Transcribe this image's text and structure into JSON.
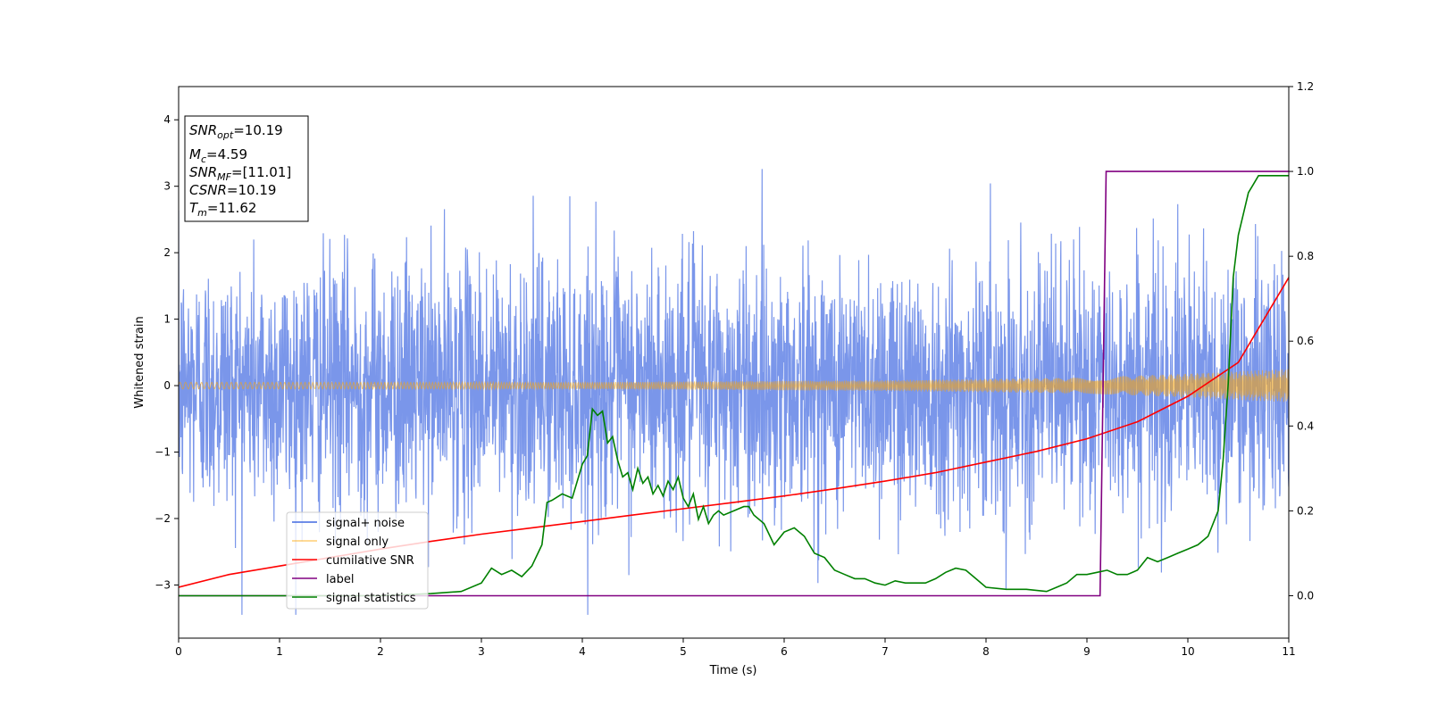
{
  "chart_data": {
    "type": "line",
    "xlabel": "Time (s)",
    "ylabel": "Whitened strain",
    "xlim": [
      0,
      11
    ],
    "ylim_left": [
      -3.8,
      4.5
    ],
    "ylim_right": [
      -0.1,
      1.2
    ],
    "x_ticks": [
      "0",
      "1",
      "2",
      "3",
      "4",
      "5",
      "6",
      "7",
      "8",
      "9",
      "10",
      "11"
    ],
    "y_ticks_left": [
      "−3",
      "−2",
      "−1",
      "0",
      "1",
      "2",
      "3",
      "4"
    ],
    "y_ticks_right": [
      "0.0",
      "0.2",
      "0.4",
      "0.6",
      "0.8",
      "1.0",
      "1.2"
    ],
    "grid": false,
    "legend_position": "lower-left",
    "annotation_box": {
      "lines": [
        {
          "sym": "SNR",
          "sub": "opt",
          "text": "=10.19"
        },
        {
          "sym": "M",
          "sub": "c",
          "text": "=4.59"
        },
        {
          "sym": "SNR",
          "sub": "MF",
          "text": "=[11.01]"
        },
        {
          "sym": "CSNR",
          "sub": "",
          "text": "=10.19"
        },
        {
          "sym": "T",
          "sub": "m",
          "text": "=11.62"
        }
      ]
    },
    "series": [
      {
        "name": "signal+ noise",
        "axis": "left",
        "color": "#4169e1",
        "style": "noise",
        "approx_envelope": {
          "typical_low": -1.6,
          "typical_high": 1.6,
          "max": 4.18,
          "min": -3.45
        }
      },
      {
        "name": "signal only",
        "axis": "left",
        "color": "#ffa500",
        "style": "chirp",
        "amplitude_points": [
          [
            0,
            0.05
          ],
          [
            4,
            0.05
          ],
          [
            7,
            0.08
          ],
          [
            9,
            0.12
          ],
          [
            10,
            0.18
          ],
          [
            11,
            0.25
          ]
        ]
      },
      {
        "name": "cumilative SNR",
        "axis": "right",
        "color": "#ff0000",
        "x": [
          0,
          0.5,
          1,
          1.5,
          2,
          2.5,
          3,
          3.5,
          4,
          4.5,
          5,
          5.5,
          6,
          6.5,
          7,
          7.5,
          8,
          8.5,
          9,
          9.5,
          10,
          10.5,
          11
        ],
        "y": [
          0.02,
          0.05,
          0.07,
          0.09,
          0.11,
          0.128,
          0.145,
          0.16,
          0.175,
          0.19,
          0.205,
          0.22,
          0.235,
          0.252,
          0.27,
          0.29,
          0.315,
          0.34,
          0.37,
          0.41,
          0.47,
          0.55,
          0.75
        ]
      },
      {
        "name": "label",
        "axis": "right",
        "color": "#800080",
        "x": [
          0,
          9.13,
          9.19,
          11
        ],
        "y": [
          0,
          0,
          1,
          1
        ]
      },
      {
        "name": "signal statistics",
        "axis": "right",
        "color": "#008000",
        "x": [
          0,
          0.5,
          1,
          1.5,
          2,
          2.5,
          2.8,
          3,
          3.1,
          3.2,
          3.3,
          3.4,
          3.5,
          3.6,
          3.65,
          3.7,
          3.8,
          3.9,
          4.0,
          4.05,
          4.1,
          4.15,
          4.2,
          4.25,
          4.3,
          4.35,
          4.4,
          4.45,
          4.5,
          4.55,
          4.6,
          4.65,
          4.7,
          4.75,
          4.8,
          4.85,
          4.9,
          4.95,
          5.0,
          5.05,
          5.1,
          5.15,
          5.2,
          5.25,
          5.3,
          5.35,
          5.4,
          5.5,
          5.6,
          5.65,
          5.7,
          5.8,
          5.9,
          6.0,
          6.1,
          6.2,
          6.3,
          6.4,
          6.5,
          6.6,
          6.7,
          6.8,
          6.9,
          7.0,
          7.1,
          7.2,
          7.3,
          7.4,
          7.5,
          7.6,
          7.7,
          7.8,
          7.9,
          8.0,
          8.2,
          8.4,
          8.6,
          8.7,
          8.8,
          8.9,
          9.0,
          9.1,
          9.2,
          9.3,
          9.4,
          9.5,
          9.6,
          9.7,
          9.8,
          9.9,
          10.0,
          10.1,
          10.2,
          10.3,
          10.35,
          10.4,
          10.45,
          10.5,
          10.55,
          10.6,
          10.65,
          10.7,
          10.8,
          10.9,
          11.0
        ],
        "y": [
          0.0,
          0.0,
          0.0,
          0.0,
          0.0,
          0.005,
          0.01,
          0.03,
          0.065,
          0.05,
          0.06,
          0.045,
          0.07,
          0.12,
          0.22,
          0.225,
          0.24,
          0.23,
          0.31,
          0.33,
          0.44,
          0.425,
          0.435,
          0.36,
          0.375,
          0.32,
          0.28,
          0.29,
          0.25,
          0.3,
          0.265,
          0.28,
          0.24,
          0.26,
          0.235,
          0.27,
          0.25,
          0.28,
          0.23,
          0.21,
          0.24,
          0.18,
          0.21,
          0.17,
          0.19,
          0.2,
          0.19,
          0.2,
          0.21,
          0.21,
          0.19,
          0.17,
          0.12,
          0.15,
          0.16,
          0.14,
          0.1,
          0.09,
          0.06,
          0.05,
          0.04,
          0.04,
          0.03,
          0.025,
          0.035,
          0.03,
          0.03,
          0.03,
          0.04,
          0.055,
          0.065,
          0.06,
          0.04,
          0.02,
          0.015,
          0.015,
          0.01,
          0.02,
          0.03,
          0.05,
          0.05,
          0.055,
          0.06,
          0.05,
          0.05,
          0.06,
          0.09,
          0.08,
          0.09,
          0.1,
          0.11,
          0.12,
          0.14,
          0.2,
          0.32,
          0.5,
          0.75,
          0.85,
          0.9,
          0.95,
          0.97,
          0.99,
          0.99,
          0.99,
          0.99
        ]
      }
    ]
  }
}
